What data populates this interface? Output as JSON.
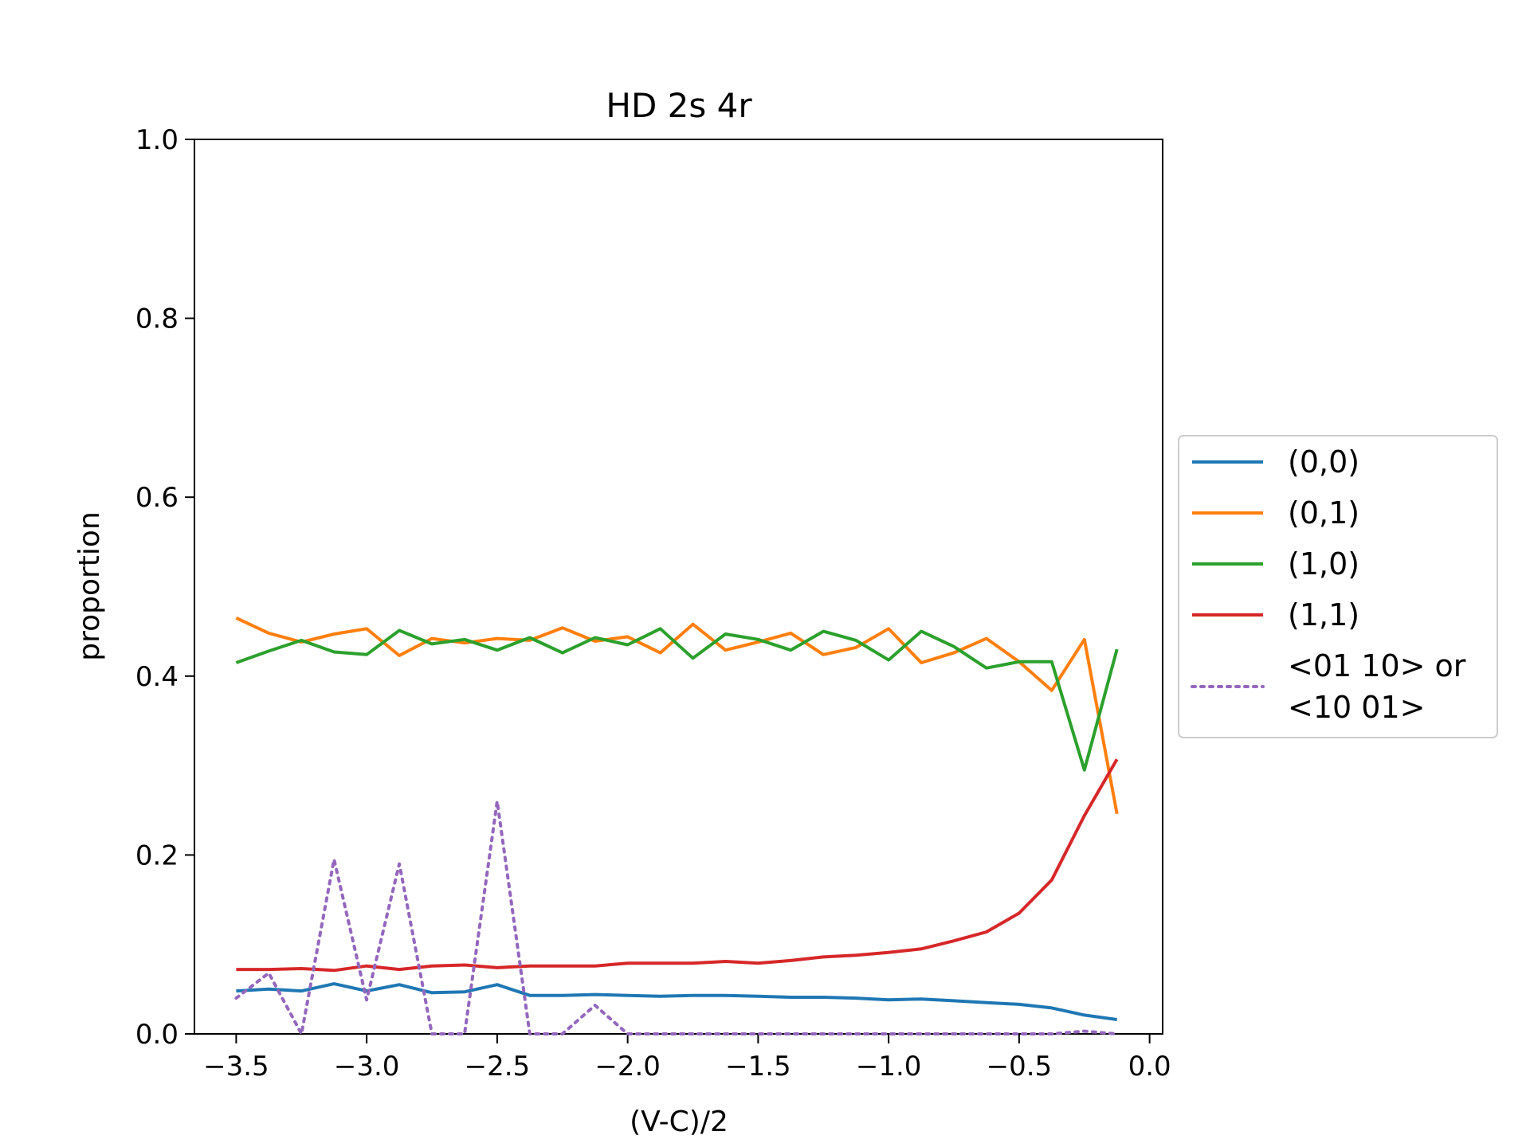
{
  "chart_data": {
    "type": "line",
    "title": "HD 2s 4r",
    "xlabel": "(V-C)/2",
    "ylabel": "proportion",
    "xlim": [
      -3.66,
      0.05
    ],
    "ylim": [
      0,
      1
    ],
    "xticks": [
      "−3.5",
      "−3.0",
      "−2.5",
      "−2.0",
      "−1.5",
      "−1.0",
      "−0.5",
      "0.0"
    ],
    "xtick_values": [
      -3.5,
      -3.0,
      -2.5,
      -2.0,
      -1.5,
      -1.0,
      -0.5,
      0.0
    ],
    "yticks": [
      "0.0",
      "0.2",
      "0.4",
      "0.6",
      "0.8",
      "1.0"
    ],
    "ytick_values": [
      0,
      0.2,
      0.4,
      0.6,
      0.8,
      1.0
    ],
    "grid": false,
    "legend_position": "right, outside plot",
    "x": [
      -3.5,
      -3.375,
      -3.25,
      -3.125,
      -3.0,
      -2.875,
      -2.75,
      -2.625,
      -2.5,
      -2.375,
      -2.25,
      -2.125,
      -2.0,
      -1.875,
      -1.75,
      -1.625,
      -1.5,
      -1.375,
      -1.25,
      -1.125,
      -1.0,
      -0.875,
      -0.75,
      -0.625,
      -0.5,
      -0.375,
      -0.25,
      -0.125
    ],
    "series": [
      {
        "name": "(0,0)",
        "color": "#1f77b4",
        "style": "solid",
        "values": [
          0.048,
          0.05,
          0.048,
          0.056,
          0.048,
          0.055,
          0.046,
          0.047,
          0.055,
          0.043,
          0.043,
          0.044,
          0.043,
          0.042,
          0.043,
          0.043,
          0.042,
          0.041,
          0.041,
          0.04,
          0.038,
          0.039,
          0.037,
          0.035,
          0.033,
          0.029,
          0.021,
          0.016
        ]
      },
      {
        "name": "(0,1)",
        "color": "#ff7f0e",
        "style": "solid",
        "values": [
          0.465,
          0.448,
          0.438,
          0.447,
          0.453,
          0.423,
          0.442,
          0.437,
          0.442,
          0.44,
          0.454,
          0.439,
          0.444,
          0.426,
          0.458,
          0.429,
          0.438,
          0.448,
          0.424,
          0.432,
          0.453,
          0.415,
          0.426,
          0.442,
          0.416,
          0.384,
          0.441,
          0.246
        ]
      },
      {
        "name": "(1,0)",
        "color": "#2ca02c",
        "style": "solid",
        "values": [
          0.415,
          0.428,
          0.44,
          0.427,
          0.424,
          0.451,
          0.436,
          0.441,
          0.429,
          0.443,
          0.426,
          0.443,
          0.435,
          0.453,
          0.42,
          0.447,
          0.441,
          0.429,
          0.45,
          0.44,
          0.418,
          0.45,
          0.433,
          0.409,
          0.416,
          0.416,
          0.295,
          0.43
        ]
      },
      {
        "name": "(1,1)",
        "color": "#d62728",
        "style": "solid",
        "values": [
          0.072,
          0.072,
          0.073,
          0.071,
          0.076,
          0.072,
          0.076,
          0.077,
          0.074,
          0.076,
          0.076,
          0.076,
          0.079,
          0.079,
          0.079,
          0.081,
          0.079,
          0.082,
          0.086,
          0.088,
          0.091,
          0.095,
          0.104,
          0.114,
          0.135,
          0.172,
          0.244,
          0.307
        ]
      },
      {
        "name": "<01 10> or <10 01>",
        "legend_lines": [
          "<01 10> or",
          "<10 01>"
        ],
        "color": "#9467bd",
        "style": "dotted",
        "values": [
          0.04,
          0.068,
          0.0,
          0.195,
          0.038,
          0.19,
          0.0,
          0.0,
          0.26,
          0.0,
          0.0,
          0.032,
          0.0,
          0.0,
          0.0,
          0.0,
          0.0,
          0.0,
          0.0,
          0.0,
          0.0,
          0.0,
          0.0,
          0.0,
          0.0,
          0.0,
          0.003,
          0.0
        ]
      }
    ]
  }
}
